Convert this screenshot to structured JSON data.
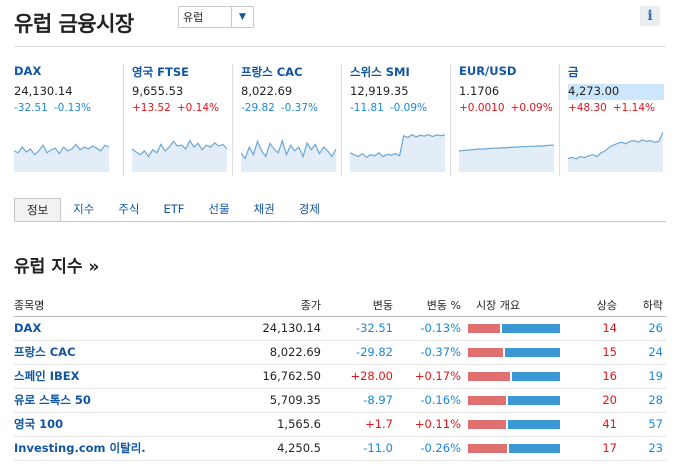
{
  "header": {
    "title": "유럽 금융시장",
    "region_select": "유럽",
    "info_icon": "i"
  },
  "quotes": [
    {
      "name": "DAX",
      "value": "24,130.14",
      "change": "-32.51",
      "change_pct": "-0.13%",
      "direction": "down",
      "highlight": false,
      "spark": [
        0.45,
        0.4,
        0.55,
        0.42,
        0.5,
        0.35,
        0.45,
        0.6,
        0.4,
        0.48,
        0.52,
        0.38,
        0.55,
        0.45,
        0.5,
        0.62,
        0.48,
        0.55,
        0.5,
        0.58,
        0.52,
        0.45,
        0.6,
        0.55
      ]
    },
    {
      "name": "영국 FTSE",
      "value": "9,655.53",
      "change": "+13.52",
      "change_pct": "+0.14%",
      "direction": "up",
      "highlight": false,
      "spark": [
        0.5,
        0.42,
        0.35,
        0.45,
        0.3,
        0.48,
        0.4,
        0.62,
        0.45,
        0.55,
        0.7,
        0.58,
        0.6,
        0.5,
        0.72,
        0.55,
        0.65,
        0.48,
        0.6,
        0.55,
        0.66,
        0.58,
        0.62,
        0.5
      ]
    },
    {
      "name": "프랑스 CAC",
      "value": "8,022.69",
      "change": "-29.82",
      "change_pct": "-0.37%",
      "direction": "down",
      "highlight": false,
      "spark": [
        0.4,
        0.25,
        0.55,
        0.35,
        0.7,
        0.45,
        0.3,
        0.65,
        0.5,
        0.4,
        0.72,
        0.35,
        0.6,
        0.45,
        0.55,
        0.3,
        0.66,
        0.48,
        0.62,
        0.38,
        0.55,
        0.45,
        0.3,
        0.5
      ]
    },
    {
      "name": "스위스 SMI",
      "value": "12,919.35",
      "change": "-11.81",
      "change_pct": "-0.09%",
      "direction": "down",
      "highlight": false,
      "spark": [
        0.4,
        0.35,
        0.3,
        0.38,
        0.28,
        0.35,
        0.32,
        0.4,
        0.3,
        0.36,
        0.34,
        0.38,
        0.32,
        0.85,
        0.8,
        0.88,
        0.82,
        0.86,
        0.84,
        0.88,
        0.83,
        0.87,
        0.85,
        0.88
      ]
    },
    {
      "name": "EUR/USD",
      "value": "1.1706",
      "change": "+0.0010",
      "change_pct": "+0.09%",
      "direction": "up",
      "highlight": false,
      "spark": [
        0.45,
        0.46,
        0.47,
        0.48,
        0.49,
        0.5,
        0.5,
        0.51,
        0.52,
        0.52,
        0.53,
        0.53,
        0.54,
        0.55,
        0.55,
        0.56,
        0.56,
        0.57,
        0.57,
        0.58,
        0.58,
        0.59,
        0.6,
        0.6
      ]
    },
    {
      "name": "금",
      "value": "4,273.00",
      "change": "+48.30",
      "change_pct": "+1.14%",
      "direction": "up",
      "highlight": true,
      "spark": [
        0.25,
        0.28,
        0.24,
        0.3,
        0.27,
        0.32,
        0.35,
        0.3,
        0.4,
        0.45,
        0.55,
        0.6,
        0.65,
        0.68,
        0.64,
        0.7,
        0.72,
        0.68,
        0.74,
        0.7,
        0.72,
        0.68,
        0.7,
        0.95
      ]
    }
  ],
  "tabs": [
    "정보",
    "지수",
    "주식",
    "ETF",
    "선물",
    "채권",
    "경제"
  ],
  "section_title": "유럽 지수 »",
  "table": {
    "headers": {
      "name": "종목명",
      "last": "종가",
      "chg": "변동",
      "chg_pct": "변동 %",
      "market": "시장 개요",
      "up": "상승",
      "down": "하락"
    },
    "rows": [
      {
        "name": "DAX",
        "last": "24,130.14",
        "chg": "-32.51",
        "chg_pct": "-0.13%",
        "direction": "down",
        "advancing": "14",
        "declining": "26"
      },
      {
        "name": "프랑스 CAC",
        "last": "8,022.69",
        "chg": "-29.82",
        "chg_pct": "-0.37%",
        "direction": "down",
        "advancing": "15",
        "declining": "24"
      },
      {
        "name": "스페인 IBEX",
        "last": "16,762.50",
        "chg": "+28.00",
        "chg_pct": "+0.17%",
        "direction": "up",
        "advancing": "16",
        "declining": "19"
      },
      {
        "name": "유로 스톡스 50",
        "last": "5,709.35",
        "chg": "-8.97",
        "chg_pct": "-0.16%",
        "direction": "down",
        "advancing": "20",
        "declining": "28"
      },
      {
        "name": "영국 100",
        "last": "1,565.6",
        "chg": "+1.7",
        "chg_pct": "+0.11%",
        "direction": "up",
        "advancing": "41",
        "declining": "57"
      },
      {
        "name": "Investing.com 이탈리.",
        "last": "4,250.5",
        "chg": "-11.0",
        "chg_pct": "-0.26%",
        "direction": "down",
        "advancing": "17",
        "declining": "23"
      }
    ]
  },
  "colors": {
    "up": "#e0151c",
    "down": "#1b88d6",
    "link": "#1256a0",
    "spark_line": "#6aa7d8",
    "spark_fill": "#e3edf7",
    "bar_up": "#e07070",
    "bar_down": "#3b96d4"
  }
}
